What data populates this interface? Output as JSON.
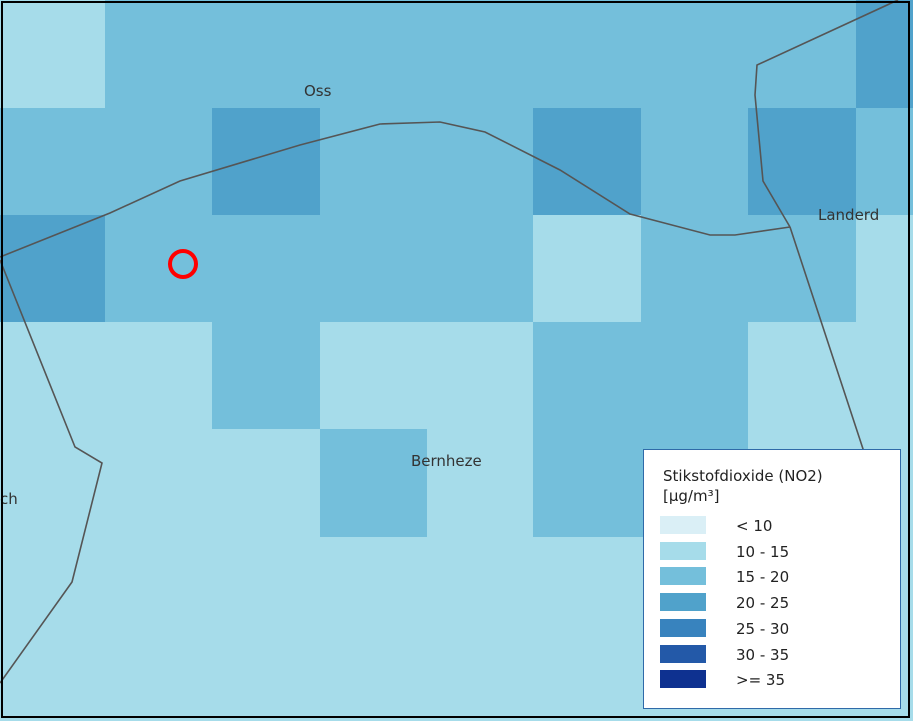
{
  "map": {
    "places": [
      "Oss",
      "Landerd",
      "Bernheze",
      "ch"
    ],
    "marker": {
      "type": "location-circle",
      "color": "#ff0000"
    }
  },
  "legend": {
    "title_line1": "Stikstofdioxide (NO2)",
    "title_line2": "[µg/m³]",
    "classes": [
      {
        "label": "< 10",
        "color": "#daeff6"
      },
      {
        "label": "10 - 15",
        "color": "#a6dcea"
      },
      {
        "label": "15 - 20",
        "color": "#74bfdb"
      },
      {
        "label": "20 - 25",
        "color": "#50a2cb"
      },
      {
        "label": "25 - 30",
        "color": "#3883be"
      },
      {
        "label": "30 - 35",
        "color": "#2359a8"
      },
      {
        "label": ">= 35",
        "color": "#0e3190"
      }
    ]
  },
  "colors": {
    "boundary": "#555555",
    "marker": "#ff0000",
    "legend_border": "#2f6aa8"
  }
}
